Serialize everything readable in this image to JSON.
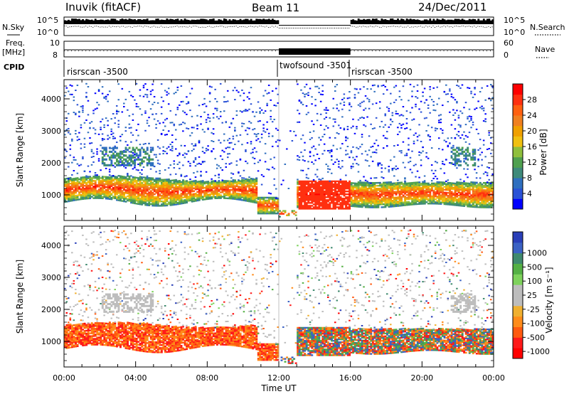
{
  "header": {
    "station": "Inuvik (fitACF)",
    "beam": "Beam 11",
    "date": "24/Dec/2011"
  },
  "status_panels": {
    "nsky_label": "N.Sky",
    "nsky_top": "10^5",
    "nsky_bottom": "10^0",
    "nsearch_label": "N.Search",
    "nsearch_top": "10^5",
    "nsearch_bottom": "10^0",
    "freq_label_1": "Freq.",
    "freq_label_2": "[MHz]",
    "freq_tick_top": "10",
    "freq_tick_bottom": "8",
    "nave_label": "Nave",
    "nave_tick_top": "60",
    "nave_tick_bottom": "0",
    "cpid_label": "CPID",
    "cpid_segments": [
      {
        "name": "risrscan -3500",
        "start_h": 0,
        "end_h": 12
      },
      {
        "name": "twofsound -3501",
        "start_h": 12,
        "end_h": 16
      },
      {
        "name": "risrscan -3500",
        "start_h": 16,
        "end_h": 24
      }
    ]
  },
  "chart_data": [
    {
      "type": "heatmap",
      "title": "",
      "xlabel": "Time UT",
      "ylabel": "Slant Range [km]",
      "xlim": [
        0,
        24
      ],
      "ylim": [
        200,
        4600
      ],
      "x_ticks": [
        "00:00",
        "04:00",
        "08:00",
        "12:00",
        "16:00",
        "20:00",
        "00:00"
      ],
      "y_ticks": [
        "1000",
        "2000",
        "3000",
        "4000"
      ],
      "colorbar": {
        "label": "Power [dB]",
        "ticks": [
          "4",
          "8",
          "12",
          "16",
          "20",
          "24",
          "28"
        ],
        "range": [
          0,
          32
        ],
        "colors": [
          "#0000ff",
          "#2a52d6",
          "#2f6fbf",
          "#3e8a7a",
          "#4fa04f",
          "#8fbf3c",
          "#f0c010",
          "#f0a000",
          "#f08020",
          "#ff6010",
          "#ff3010",
          "#ff0000"
        ]
      },
      "bands": [
        {
          "start_h": 0,
          "end_h": 12,
          "range_km": [
            700,
            1600
          ],
          "dominant_value": "20-28 dB"
        },
        {
          "start_h": 13,
          "end_h": 16,
          "range_km": [
            500,
            1500
          ],
          "dominant_value": "28 dB"
        },
        {
          "start_h": 16,
          "end_h": 24,
          "range_km": [
            600,
            1400
          ],
          "dominant_value": "20-28 dB"
        }
      ]
    },
    {
      "type": "heatmap",
      "title": "",
      "xlabel": "Time UT",
      "ylabel": "Slant Range [km]",
      "xlim": [
        0,
        24
      ],
      "ylim": [
        200,
        4600
      ],
      "x_ticks": [
        "00:00",
        "04:00",
        "08:00",
        "12:00",
        "16:00",
        "20:00",
        "00:00"
      ],
      "y_ticks": [
        "1000",
        "2000",
        "3000",
        "4000"
      ],
      "colorbar": {
        "label": "Velocity [m s⁻¹]",
        "ticks": [
          "1000",
          "500",
          "100",
          "25",
          "-25",
          "-100",
          "-500",
          "-1000"
        ],
        "range": [
          -1000,
          1000
        ],
        "colors": [
          "#2a3fb8",
          "#3b62c4",
          "#3f8a6e",
          "#54b044",
          "#7ed25c",
          "#bdbdbd",
          "#bdbdbd",
          "#f0b030",
          "#ff8c1a",
          "#ff5a10",
          "#ff1a1a",
          "#ff0000"
        ]
      },
      "bands": [
        {
          "start_h": 0,
          "end_h": 12,
          "range_km": [
            700,
            1600
          ],
          "dominant_value": "-100 to -500 m/s"
        },
        {
          "start_h": 13,
          "end_h": 16,
          "range_km": [
            600,
            1500
          ],
          "dominant_value": "mixed"
        },
        {
          "start_h": 16,
          "end_h": 24,
          "range_km": [
            600,
            1500
          ],
          "dominant_value": "mixed"
        }
      ]
    }
  ]
}
